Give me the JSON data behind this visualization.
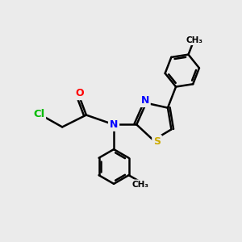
{
  "bg_color": "#ebebeb",
  "bond_color": "#000000",
  "bond_width": 1.8,
  "atom_colors": {
    "N": "#0000ff",
    "O": "#ff0000",
    "S": "#ccaa00",
    "Cl": "#00bb00",
    "C": "#000000"
  },
  "font_size": 9,
  "fig_size": [
    3.0,
    3.0
  ],
  "dpi": 100
}
